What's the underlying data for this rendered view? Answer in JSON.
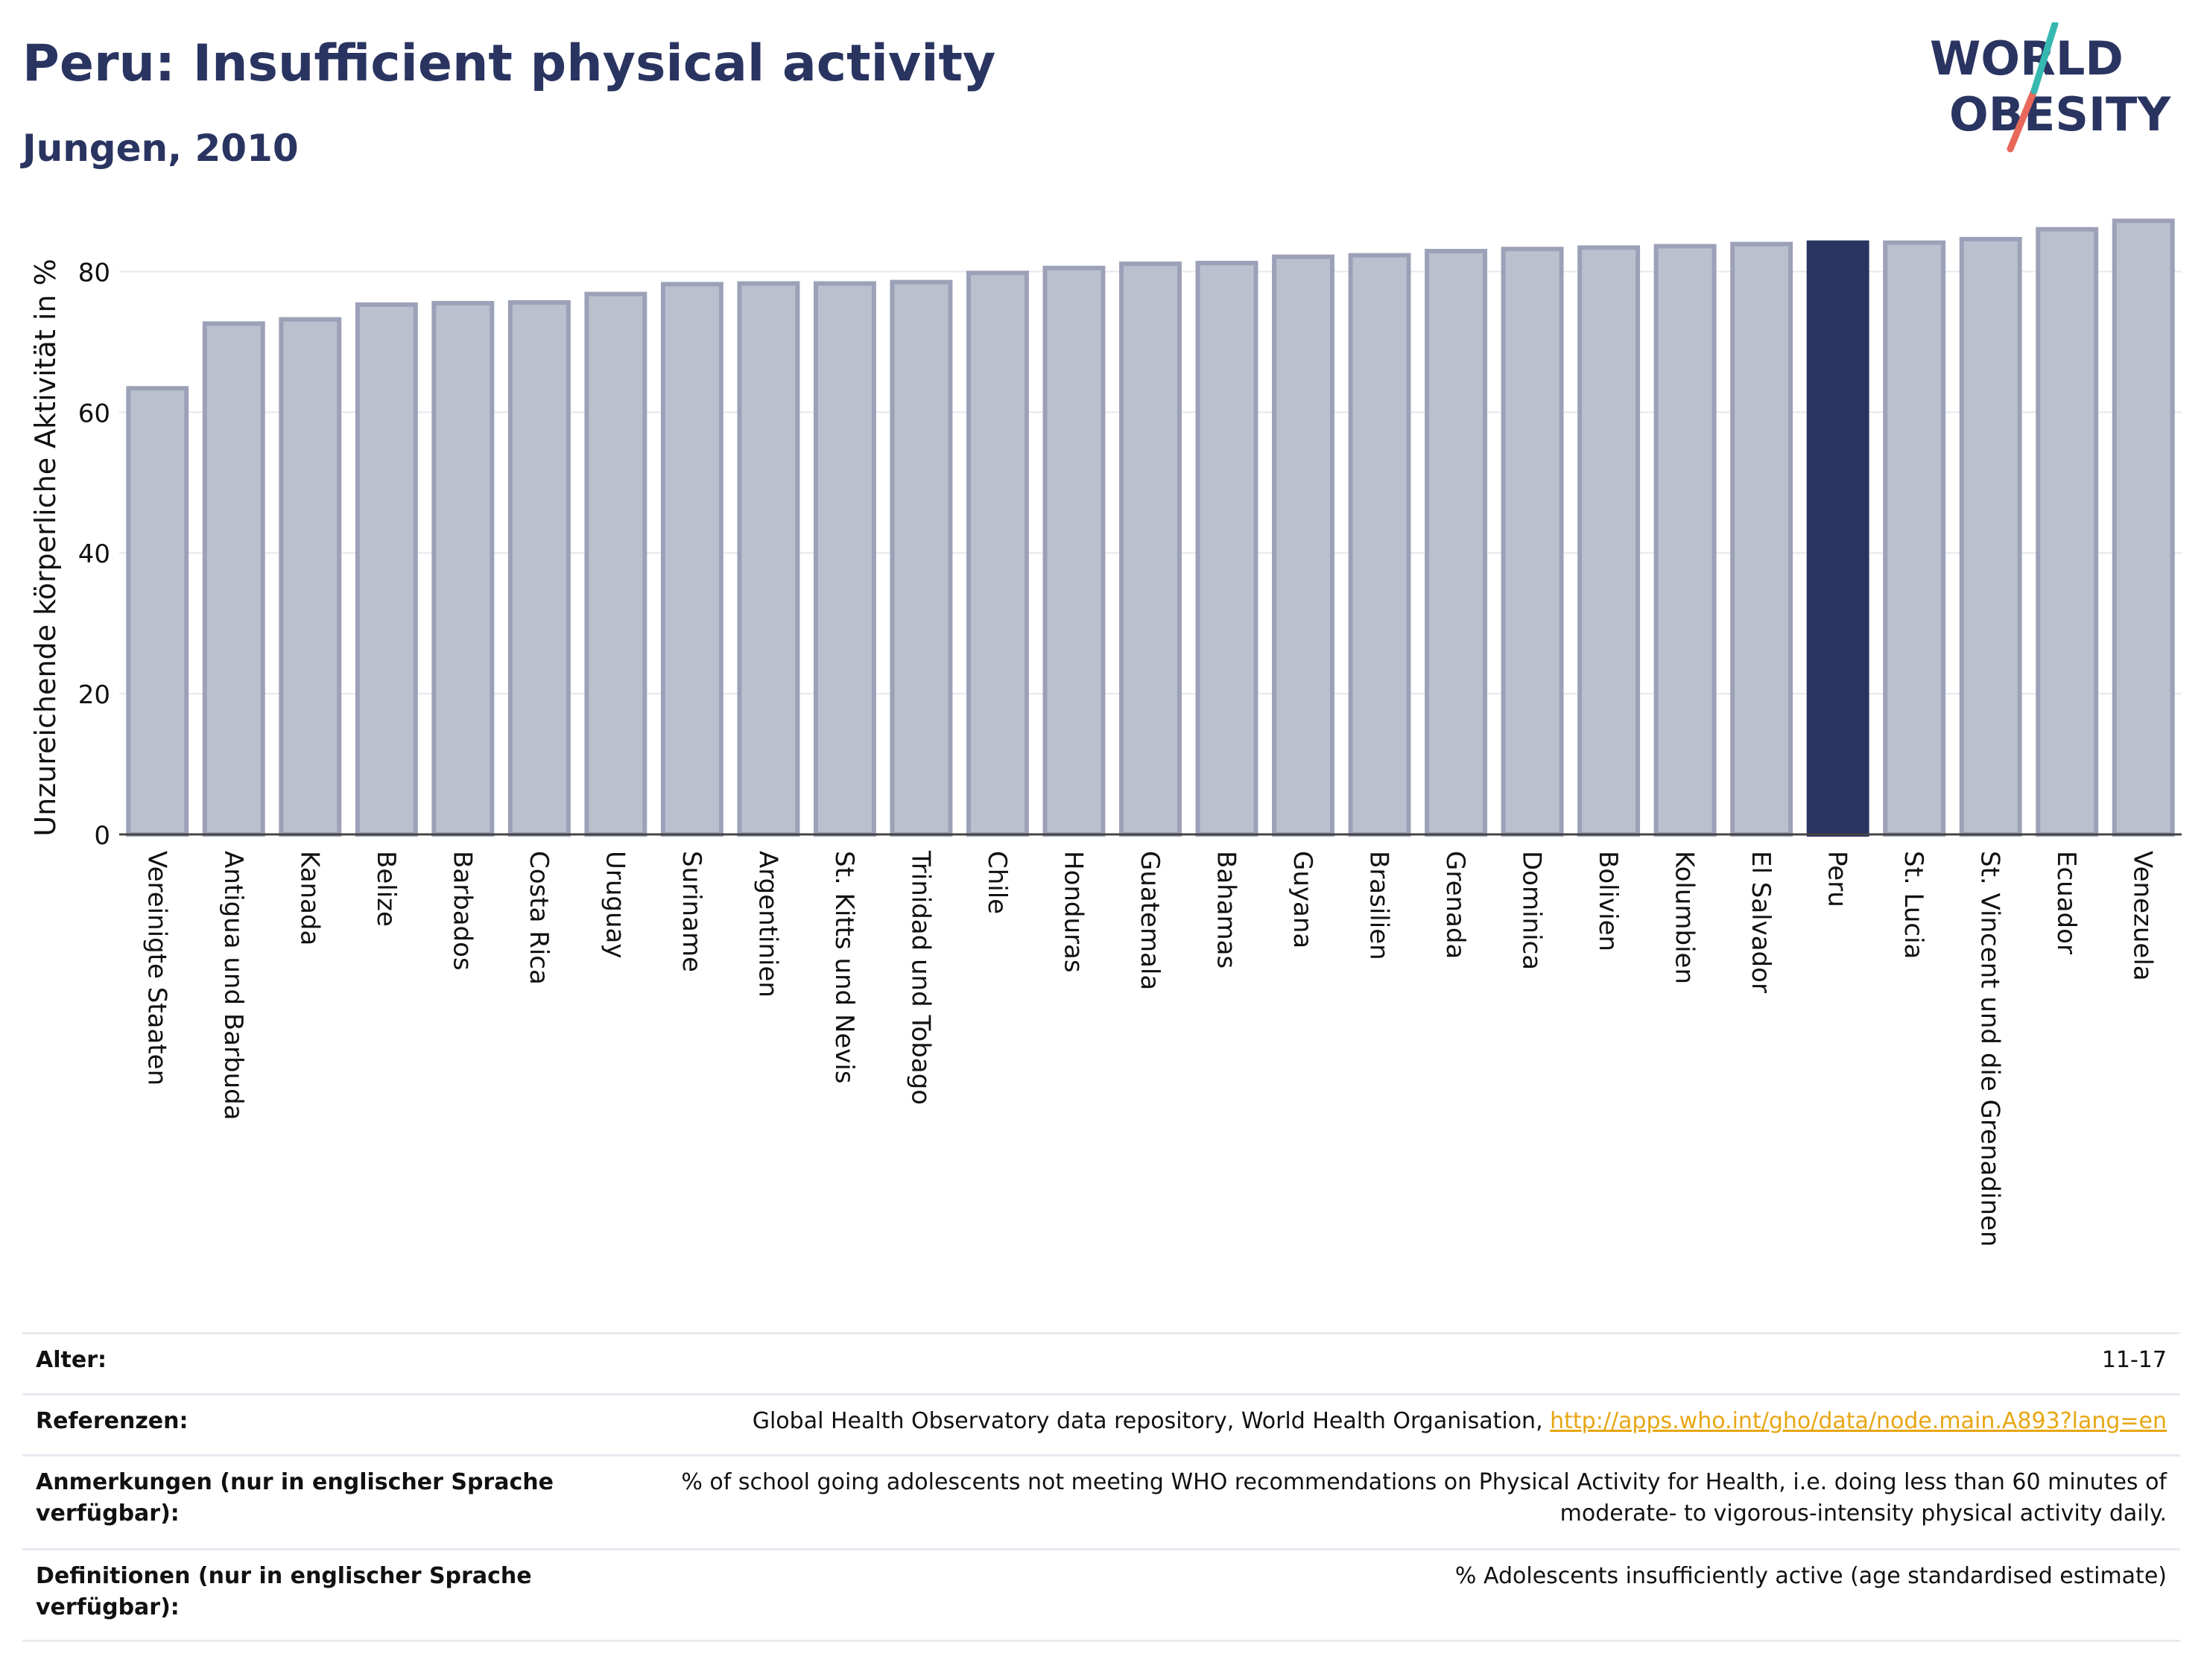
{
  "header": {
    "title": "Peru: Insufficient physical activity",
    "subtitle": "Jungen, 2010"
  },
  "logo": {
    "line1": "WORLD",
    "line2": "OBESITY",
    "colors": {
      "text": "#2a3461",
      "slash_teal": "#35b8b0",
      "slash_red": "#e8685a"
    }
  },
  "chart_data": {
    "type": "bar",
    "title": "Peru: Insufficient physical activity",
    "subtitle": "Jungen, 2010",
    "xlabel": "",
    "ylabel": "Unzureichende körperliche Aktivität in %",
    "ylim": [
      0,
      90
    ],
    "yticks": [
      0,
      20,
      40,
      60,
      80
    ],
    "grid": true,
    "highlight": "Peru",
    "colors": {
      "bar": "#bcc0ce",
      "bar_edge": "#9ca1b8",
      "highlight": "#2a3461"
    },
    "categories": [
      "Vereinigte Staaten",
      "Antigua und Barbuda",
      "Kanada",
      "Belize",
      "Barbados",
      "Costa Rica",
      "Uruguay",
      "Suriname",
      "Argentinien",
      "St. Kitts und Nevis",
      "Trinidad und Tobago",
      "Chile",
      "Honduras",
      "Guatemala",
      "Bahamas",
      "Guyana",
      "Brasilien",
      "Grenada",
      "Dominica",
      "Bolivien",
      "Kolumbien",
      "El Salvador",
      "Peru",
      "St. Lucia",
      "St. Vincent und die Grenadinen",
      "Ecuador",
      "Venezuela"
    ],
    "values": [
      63.4,
      72.6,
      73.2,
      75.3,
      75.5,
      75.6,
      76.8,
      78.2,
      78.3,
      78.3,
      78.5,
      79.8,
      80.5,
      81.1,
      81.2,
      82.1,
      82.3,
      82.9,
      83.2,
      83.4,
      83.6,
      83.9,
      84.1,
      84.1,
      84.6,
      86.0,
      87.2
    ]
  },
  "info": {
    "rows": [
      {
        "label": "Alter:",
        "value": "11-17"
      },
      {
        "label": "Referenzen:",
        "value": "Global Health Observatory data repository, World Health Organisation, ",
        "link": "http://apps.who.int/gho/data/node.main.A893?lang=en"
      },
      {
        "label": "Anmerkungen (nur in englischer Sprache verfügbar):",
        "value": "% of school going adolescents not meeting WHO recommendations on Physical Activity for Health, i.e. doing less than 60 minutes of moderate- to vigorous-intensity physical activity daily."
      },
      {
        "label": "Definitionen (nur in englischer Sprache verfügbar):",
        "value": "% Adolescents insufficiently active (age standardised estimate)"
      }
    ]
  }
}
